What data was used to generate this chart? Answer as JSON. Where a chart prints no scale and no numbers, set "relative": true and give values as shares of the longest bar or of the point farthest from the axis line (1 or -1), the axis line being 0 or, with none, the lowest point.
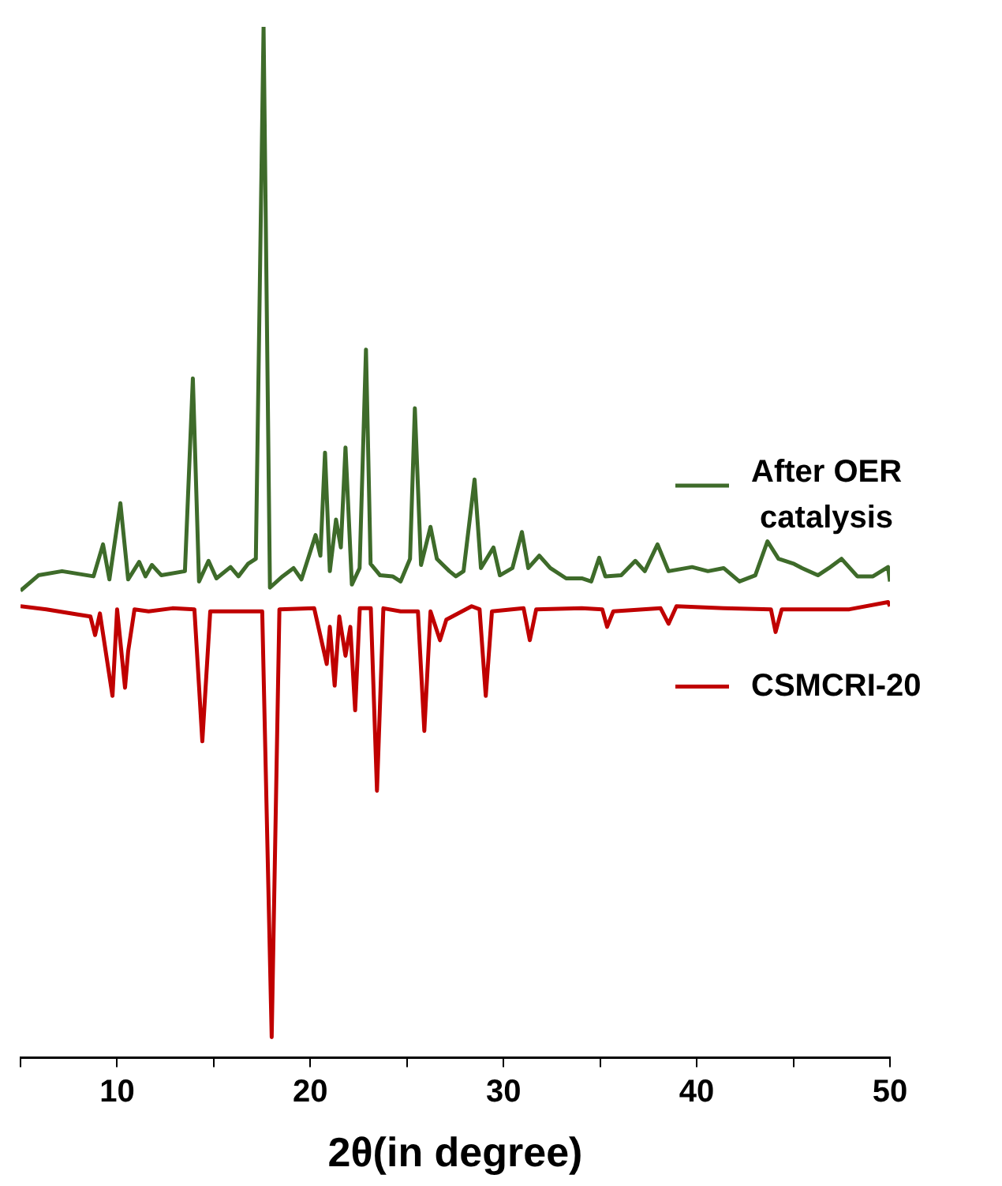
{
  "chart_data": {
    "type": "line",
    "xlabel": "2θ(in degree)",
    "relative": true,
    "xlim": [
      5,
      50
    ],
    "xticks": [
      {
        "value": 5,
        "label": null
      },
      10,
      {
        "value": 15,
        "label": null
      },
      20,
      {
        "value": 25,
        "label": null
      },
      30,
      {
        "value": 35,
        "label": null
      },
      40,
      {
        "value": 45,
        "label": null
      },
      50
    ],
    "grid": false,
    "legend": "right",
    "marker": "none",
    "line_style": "solid",
    "series": [
      {
        "name": "After OER catalysis",
        "color": "#3e6b2a",
        "x": [
          5.0,
          5.93,
          7.15,
          8.78,
          9.27,
          9.6,
          10.17,
          10.57,
          11.14,
          11.47,
          11.8,
          12.29,
          13.51,
          13.92,
          14.24,
          14.73,
          15.14,
          15.87,
          16.28,
          16.77,
          17.18,
          17.58,
          17.91,
          18.56,
          19.13,
          19.54,
          20.27,
          20.52,
          20.76,
          21.01,
          21.33,
          21.58,
          21.82,
          22.15,
          22.55,
          22.88,
          23.12,
          23.61,
          24.26,
          24.67,
          25.16,
          25.41,
          25.73,
          26.22,
          26.55,
          26.87,
          27.2,
          27.53,
          27.93,
          28.5,
          28.83,
          29.48,
          29.81,
          30.46,
          30.95,
          31.28,
          31.85,
          32.42,
          33.24,
          34.05,
          34.54,
          34.95,
          35.27,
          36.09,
          36.82,
          37.31,
          37.97,
          38.54,
          39.76,
          40.58,
          41.39,
          42.21,
          43.03,
          43.66,
          44.23,
          45.04,
          45.45,
          46.27,
          46.84,
          47.49,
          48.31,
          49.12,
          49.9,
          50.0
        ],
        "values": [
          0.453,
          0.468,
          0.472,
          0.467,
          0.498,
          0.464,
          0.538,
          0.464,
          0.481,
          0.467,
          0.478,
          0.468,
          0.472,
          0.659,
          0.462,
          0.482,
          0.465,
          0.476,
          0.467,
          0.479,
          0.484,
          1,
          0.456,
          0.467,
          0.475,
          0.464,
          0.507,
          0.487,
          0.587,
          0.472,
          0.522,
          0.495,
          0.592,
          0.459,
          0.475,
          0.687,
          0.479,
          0.468,
          0.467,
          0.462,
          0.484,
          0.63,
          0.478,
          0.515,
          0.484,
          0.478,
          0.472,
          0.467,
          0.472,
          0.561,
          0.475,
          0.495,
          0.468,
          0.475,
          0.51,
          0.475,
          0.487,
          0.475,
          0.465,
          0.465,
          0.462,
          0.485,
          0.467,
          0.468,
          0.482,
          0.472,
          0.498,
          0.472,
          0.476,
          0.472,
          0.475,
          0.462,
          0.468,
          0.501,
          0.484,
          0.479,
          0.475,
          0.468,
          0.475,
          0.484,
          0.467,
          0.467,
          0.476,
          0.462
        ]
      },
      {
        "name": "CSMCRI-20",
        "color": "#c00000",
        "x": [
          5.0,
          6.34,
          7.97,
          8.62,
          8.86,
          9.11,
          9.76,
          10.0,
          10.41,
          10.57,
          10.9,
          11.63,
          12.86,
          14.0,
          14.41,
          14.82,
          16.13,
          17.51,
          18.0,
          18.4,
          20.2,
          20.85,
          21.01,
          21.26,
          21.5,
          21.82,
          22.07,
          22.32,
          22.56,
          23.13,
          23.45,
          23.78,
          24.67,
          25.57,
          25.9,
          26.22,
          26.71,
          27.04,
          28.35,
          28.76,
          29.08,
          29.4,
          31.04,
          31.36,
          31.69,
          34.05,
          35.11,
          35.36,
          35.68,
          38.13,
          38.54,
          38.95,
          41.39,
          43.84,
          44.08,
          44.4,
          47.9,
          49.9,
          50.0
        ],
        "values": [
          0.438,
          0.435,
          0.43,
          0.428,
          0.41,
          0.431,
          0.351,
          0.435,
          0.359,
          0.394,
          0.435,
          0.433,
          0.436,
          0.435,
          0.307,
          0.433,
          0.433,
          0.433,
          0.02,
          0.435,
          0.436,
          0.382,
          0.418,
          0.361,
          0.428,
          0.39,
          0.418,
          0.337,
          0.436,
          0.436,
          0.259,
          0.436,
          0.433,
          0.433,
          0.317,
          0.433,
          0.405,
          0.425,
          0.438,
          0.435,
          0.351,
          0.433,
          0.436,
          0.405,
          0.435,
          0.436,
          0.435,
          0.418,
          0.433,
          0.436,
          0.421,
          0.438,
          0.436,
          0.435,
          0.413,
          0.435,
          0.435,
          0.442,
          0.438
        ]
      }
    ]
  }
}
